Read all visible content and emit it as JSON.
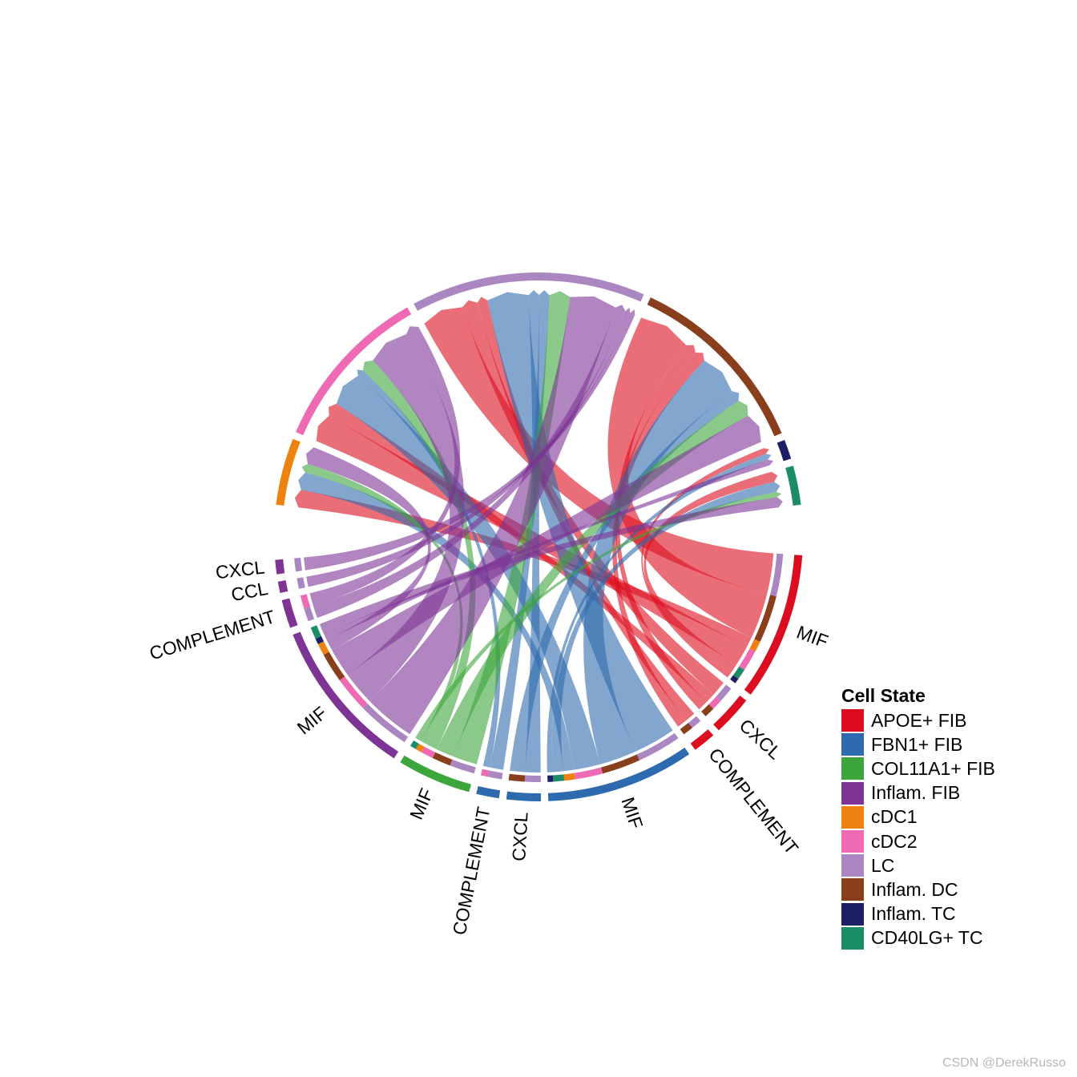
{
  "chart_data": {
    "type": "chord",
    "legend": {
      "title": "Cell State",
      "placement": "right",
      "items": [
        {
          "label": "APOE+ FIB",
          "color": "#DC0D1E"
        },
        {
          "label": "FBN1+ FIB",
          "color": "#2E6AAE"
        },
        {
          "label": "COL11A1+ FIB",
          "color": "#3CA53B"
        },
        {
          "label": "Inflam. FIB",
          "color": "#7D3494"
        },
        {
          "label": "cDC1",
          "color": "#EE820E"
        },
        {
          "label": "cDC2",
          "color": "#EF6AB5"
        },
        {
          "label": "LC",
          "color": "#AB87C2"
        },
        {
          "label": "Inflam. DC",
          "color": "#8A3F1C"
        },
        {
          "label": "Inflam. TC",
          "color": "#1C1F63"
        },
        {
          "label": "CD40LG+ TC",
          "color": "#1B8C68"
        }
      ]
    },
    "receivers": [
      {
        "cell": "cDC1",
        "color": "#EE820E",
        "size": 12
      },
      {
        "cell": "cDC2",
        "color": "#EF6AB5",
        "size": 30
      },
      {
        "cell": "LC",
        "color": "#AB87C2",
        "size": 42
      },
      {
        "cell": "Inflam. DC",
        "color": "#8A3F1C",
        "size": 34
      },
      {
        "cell": "Inflam. TC",
        "color": "#1C1F63",
        "size": 3.5
      },
      {
        "cell": "CD40LG+ TC",
        "color": "#1B8C68",
        "size": 7
      }
    ],
    "senders": [
      {
        "cell": "APOE+ FIB",
        "pathway": "MIF",
        "label": "MIF",
        "color": "#DC0D1E",
        "size": 26
      },
      {
        "cell": "APOE+ FIB",
        "pathway": "CXCL",
        "label": "CXCL",
        "color": "#DC0D1E",
        "size": 7
      },
      {
        "cell": "APOE+ FIB",
        "pathway": "COMPLEMENT",
        "label": "COMPLEMENT",
        "color": "#DC0D1E",
        "size": 4
      },
      {
        "cell": "FBN1+ FIB",
        "pathway": "MIF",
        "label": "MIF",
        "color": "#2E6AAE",
        "size": 26
      },
      {
        "cell": "FBN1+ FIB",
        "pathway": "CXCL",
        "label": "CXCL",
        "color": "#2E6AAE",
        "size": 6
      },
      {
        "cell": "FBN1+ FIB",
        "pathway": "COMPLEMENT",
        "label": "COMPLEMENT",
        "color": "#2E6AAE",
        "size": 4
      },
      {
        "cell": "COL11A1+ FIB",
        "pathway": "MIF",
        "label": "MIF",
        "color": "#3CA53B",
        "size": 13
      },
      {
        "cell": "Inflam. FIB",
        "pathway": "MIF",
        "label": "MIF",
        "color": "#7D3494",
        "size": 28
      },
      {
        "cell": "Inflam. FIB",
        "pathway": "COMPLEMENT",
        "label": "COMPLEMENT",
        "color": "#7D3494",
        "size": 5
      },
      {
        "cell": "Inflam. FIB",
        "pathway": "CCL",
        "label": "CCL",
        "color": "#7D3494",
        "size": 2
      },
      {
        "cell": "Inflam. FIB",
        "pathway": "CXCL",
        "label": "CXCL",
        "color": "#7D3494",
        "size": 2.5
      }
    ],
    "links": [
      {
        "from": 0,
        "to": 2,
        "value": 8
      },
      {
        "from": 0,
        "to": 3,
        "value": 9
      },
      {
        "from": 0,
        "to": 0,
        "value": 2
      },
      {
        "from": 0,
        "to": 1,
        "value": 4
      },
      {
        "from": 0,
        "to": 5,
        "value": 2
      },
      {
        "from": 0,
        "to": 4,
        "value": 1
      },
      {
        "from": 1,
        "to": 2,
        "value": 3
      },
      {
        "from": 1,
        "to": 1,
        "value": 2
      },
      {
        "from": 1,
        "to": 3,
        "value": 2
      },
      {
        "from": 2,
        "to": 2,
        "value": 2
      },
      {
        "from": 2,
        "to": 3,
        "value": 2
      },
      {
        "from": 3,
        "to": 2,
        "value": 8
      },
      {
        "from": 3,
        "to": 3,
        "value": 7
      },
      {
        "from": 3,
        "to": 1,
        "value": 5
      },
      {
        "from": 3,
        "to": 0,
        "value": 2
      },
      {
        "from": 3,
        "to": 5,
        "value": 2
      },
      {
        "from": 3,
        "to": 4,
        "value": 1
      },
      {
        "from": 4,
        "to": 2,
        "value": 2
      },
      {
        "from": 4,
        "to": 3,
        "value": 2
      },
      {
        "from": 5,
        "to": 2,
        "value": 2
      },
      {
        "from": 5,
        "to": 1,
        "value": 1
      },
      {
        "from": 6,
        "to": 2,
        "value": 4
      },
      {
        "from": 6,
        "to": 3,
        "value": 3
      },
      {
        "from": 6,
        "to": 1,
        "value": 2
      },
      {
        "from": 6,
        "to": 0,
        "value": 1
      },
      {
        "from": 6,
        "to": 5,
        "value": 1
      },
      {
        "from": 7,
        "to": 2,
        "value": 9
      },
      {
        "from": 7,
        "to": 1,
        "value": 6
      },
      {
        "from": 7,
        "to": 3,
        "value": 5
      },
      {
        "from": 7,
        "to": 0,
        "value": 2
      },
      {
        "from": 7,
        "to": 4,
        "value": 1
      },
      {
        "from": 7,
        "to": 5,
        "value": 2
      },
      {
        "from": 8,
        "to": 2,
        "value": 2
      },
      {
        "from": 8,
        "to": 1,
        "value": 2
      },
      {
        "from": 9,
        "to": 2,
        "value": 1
      },
      {
        "from": 10,
        "to": 2,
        "value": 1
      }
    ]
  },
  "watermark": "CSDN @DerekRusso"
}
